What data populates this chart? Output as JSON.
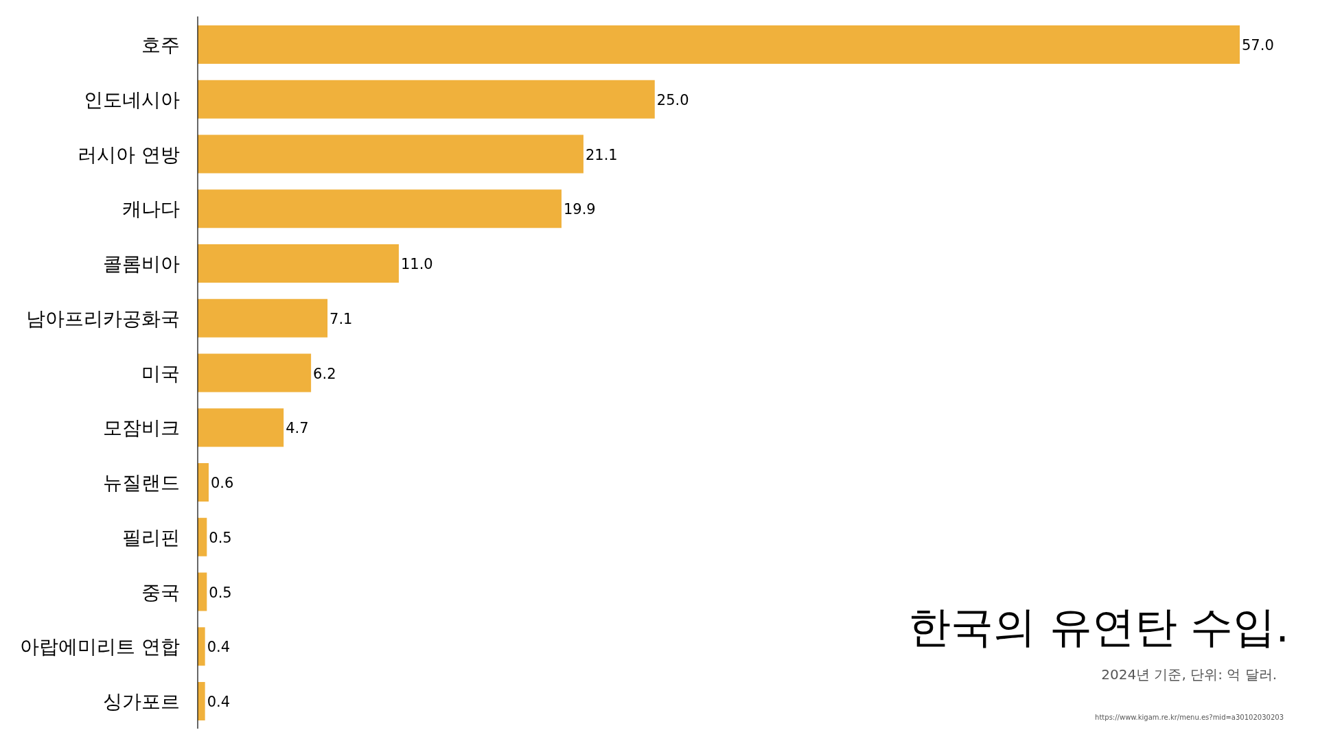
{
  "chart_data": {
    "type": "bar",
    "orientation": "horizontal",
    "title": "한국의 유연탄 수입.",
    "subtitle": "2024년 기준, 단위: 억 달러.",
    "annotations": [
      "https://www.kigam.re.kr/menu.es?mid=a30102030203"
    ],
    "categories": [
      "호주",
      "인도네시아",
      "러시아 연방",
      "캐나다",
      "콜롬비아",
      "남아프리카공화국",
      "미국",
      "모잠비크",
      "뉴질랜드",
      "필리핀",
      "중국",
      "아랍에미리트 연합",
      "싱가포르"
    ],
    "values": [
      57.0,
      25.0,
      21.1,
      19.9,
      11.0,
      7.1,
      6.2,
      4.7,
      0.6,
      0.5,
      0.5,
      0.4,
      0.4
    ],
    "value_labels": [
      "57.0",
      "25.0",
      "21.1",
      "19.9",
      "11.0",
      "7.1",
      "6.2",
      "4.7",
      "0.6",
      "0.5",
      "0.5",
      "0.4",
      "0.4"
    ],
    "color": "#f0b13c"
  }
}
